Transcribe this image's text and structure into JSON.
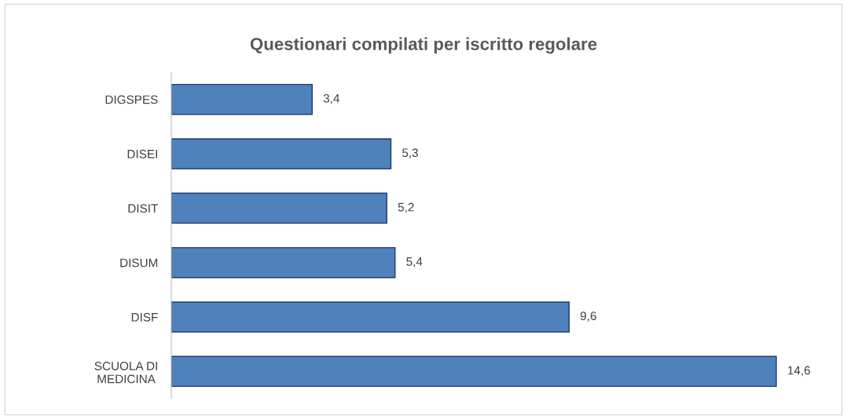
{
  "chart_data": {
    "type": "bar",
    "orientation": "horizontal",
    "title": "Questionari compilati per iscritto regolare",
    "categories": [
      "DIGSPES",
      "DISEI",
      "DISIT",
      "DISUM",
      "DISF",
      "SCUOLA DI\nMEDICINA"
    ],
    "values": [
      3.4,
      5.3,
      5.2,
      5.4,
      9.6,
      14.6
    ],
    "value_labels": [
      "3,4",
      "5,3",
      "5,2",
      "5,4",
      "9,6",
      "14,6"
    ],
    "color": "#4f81bd",
    "grid": false,
    "legend": false
  }
}
